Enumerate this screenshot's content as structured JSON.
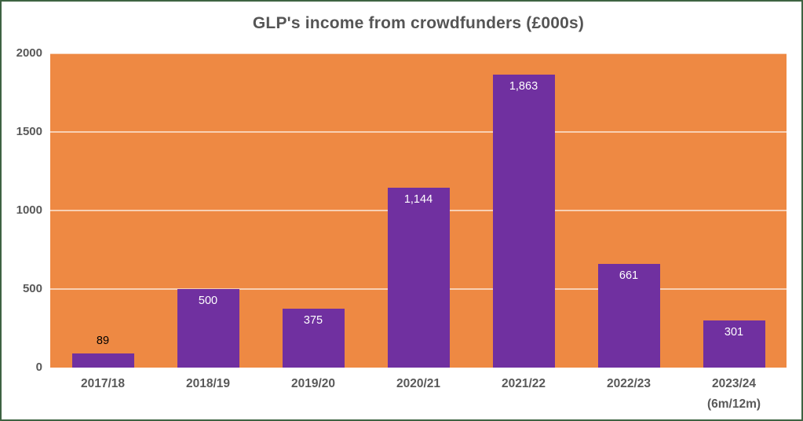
{
  "title": "GLP's income from crowdfunders (£000s)",
  "chart_data": {
    "type": "bar",
    "title": "GLP's income from crowdfunders (£000s)",
    "categories": [
      "2017/18",
      "2018/19",
      "2019/20",
      "2020/21",
      "2021/22",
      "2022/23",
      "2023/24\n(6m/12m)"
    ],
    "values": [
      89,
      500,
      375,
      1144,
      1863,
      661,
      301
    ],
    "value_labels": [
      "89",
      "500",
      "375",
      "1,144",
      "1,863",
      "661",
      "301"
    ],
    "xlabel": "",
    "ylabel": "",
    "ylim": [
      0,
      2000
    ],
    "yticks": [
      0,
      500,
      1000,
      1500,
      2000
    ],
    "ytick_labels": [
      "0",
      "500",
      "1000",
      "1500",
      "2000"
    ],
    "grid": true,
    "legend": "none"
  },
  "colors": {
    "plot_background": "#EE8943",
    "bar_fill": "#7030A0",
    "gridline": "rgba(255,255,255,0.6)",
    "axis_text": "#595959",
    "title_text": "#555555",
    "label_inside": "#FFFFFF",
    "label_outside": "#000000",
    "frame_border": "#3E6342"
  }
}
